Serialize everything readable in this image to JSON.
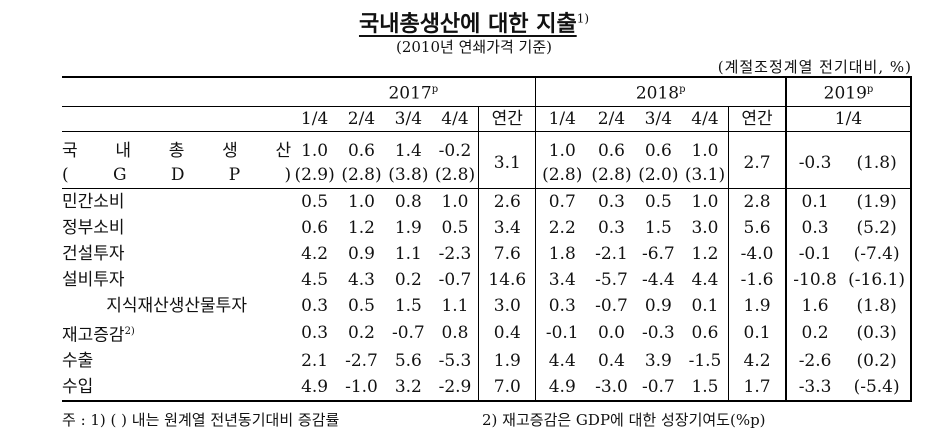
{
  "title": "국내총생산에 대한 지출",
  "title_note": "1)",
  "subtitle": "(2010년 연쇄가격 기준)",
  "unit": "(계절조정계열 전기대비, %)",
  "years": [
    {
      "label": "2017",
      "mark": "p"
    },
    {
      "label": "2018",
      "mark": "p"
    },
    {
      "label": "2019",
      "mark": "p"
    }
  ],
  "periods_2017": [
    "1/4",
    "2/4",
    "3/4",
    "4/4",
    "연간"
  ],
  "periods_2018": [
    "1/4",
    "2/4",
    "3/4",
    "4/4",
    "연간"
  ],
  "periods_2019": [
    "1/4"
  ],
  "gdp": {
    "label_1": "국 내 총 생 산",
    "label_2": "( G D P )",
    "v2017": [
      "1.0",
      "0.6",
      "1.4",
      "-0.2"
    ],
    "y2017": [
      "(2.9)",
      "(2.8)",
      "(3.8)",
      "(2.8)"
    ],
    "a2017": "3.1",
    "v2018": [
      "1.0",
      "0.6",
      "0.6",
      "1.0"
    ],
    "y2018": [
      "(2.8)",
      "(2.8)",
      "(2.0)",
      "(3.1)"
    ],
    "a2018": "2.7",
    "v2019": "-0.3",
    "y2019": "(1.8)"
  },
  "rows": [
    {
      "label": "민간소비",
      "note": "",
      "v2017": [
        "0.5",
        "1.0",
        "0.8",
        "1.0",
        "2.6"
      ],
      "v2018": [
        "0.7",
        "0.3",
        "0.5",
        "1.0",
        "2.8"
      ],
      "v2019": "0.1",
      "y2019": "(1.9)"
    },
    {
      "label": "정부소비",
      "note": "",
      "v2017": [
        "0.6",
        "1.2",
        "1.9",
        "0.5",
        "3.4"
      ],
      "v2018": [
        "2.2",
        "0.3",
        "1.5",
        "3.0",
        "5.6"
      ],
      "v2019": "0.3",
      "y2019": "(5.2)"
    },
    {
      "label": "건설투자",
      "note": "",
      "v2017": [
        "4.2",
        "0.9",
        "1.1",
        "-2.3",
        "7.6"
      ],
      "v2018": [
        "1.8",
        "-2.1",
        "-6.7",
        "1.2",
        "-4.0"
      ],
      "v2019": "-0.1",
      "y2019": "(-7.4)"
    },
    {
      "label": "설비투자",
      "note": "",
      "v2017": [
        "4.5",
        "4.3",
        "0.2",
        "-0.7",
        "14.6"
      ],
      "v2018": [
        "3.4",
        "-5.7",
        "-4.4",
        "4.4",
        "-1.6"
      ],
      "v2019": "-10.8",
      "y2019": "(-16.1)"
    },
    {
      "label": "지식재산생산물투자",
      "note": "",
      "v2017": [
        "0.3",
        "0.5",
        "1.5",
        "1.1",
        "3.0"
      ],
      "v2018": [
        "0.3",
        "-0.7",
        "0.9",
        "0.1",
        "1.9"
      ],
      "v2019": "1.6",
      "y2019": "(1.8)"
    },
    {
      "label": "재고증감",
      "note": "2)",
      "v2017": [
        "0.3",
        "0.2",
        "-0.7",
        "0.8",
        "0.4"
      ],
      "v2018": [
        "-0.1",
        "0.0",
        "-0.3",
        "0.6",
        "0.1"
      ],
      "v2019": "0.2",
      "y2019": "(0.3)"
    },
    {
      "label": "수출",
      "note": "",
      "v2017": [
        "2.1",
        "-2.7",
        "5.6",
        "-5.3",
        "1.9"
      ],
      "v2018": [
        "4.4",
        "0.4",
        "3.9",
        "-1.5",
        "4.2"
      ],
      "v2019": "-2.6",
      "y2019": "(0.2)"
    },
    {
      "label": "수입",
      "note": "",
      "v2017": [
        "4.9",
        "-1.0",
        "3.2",
        "-2.9",
        "7.0"
      ],
      "v2018": [
        "4.9",
        "-3.0",
        "-0.7",
        "1.5",
        "1.7"
      ],
      "v2019": "-3.3",
      "y2019": "(-5.4)"
    }
  ],
  "footnote_1": "주 : 1) (  ) 내는 원계열 전년동기대비 증감률",
  "footnote_2": "2) 재고증감은 GDP에 대한 성장기여도(%p)"
}
